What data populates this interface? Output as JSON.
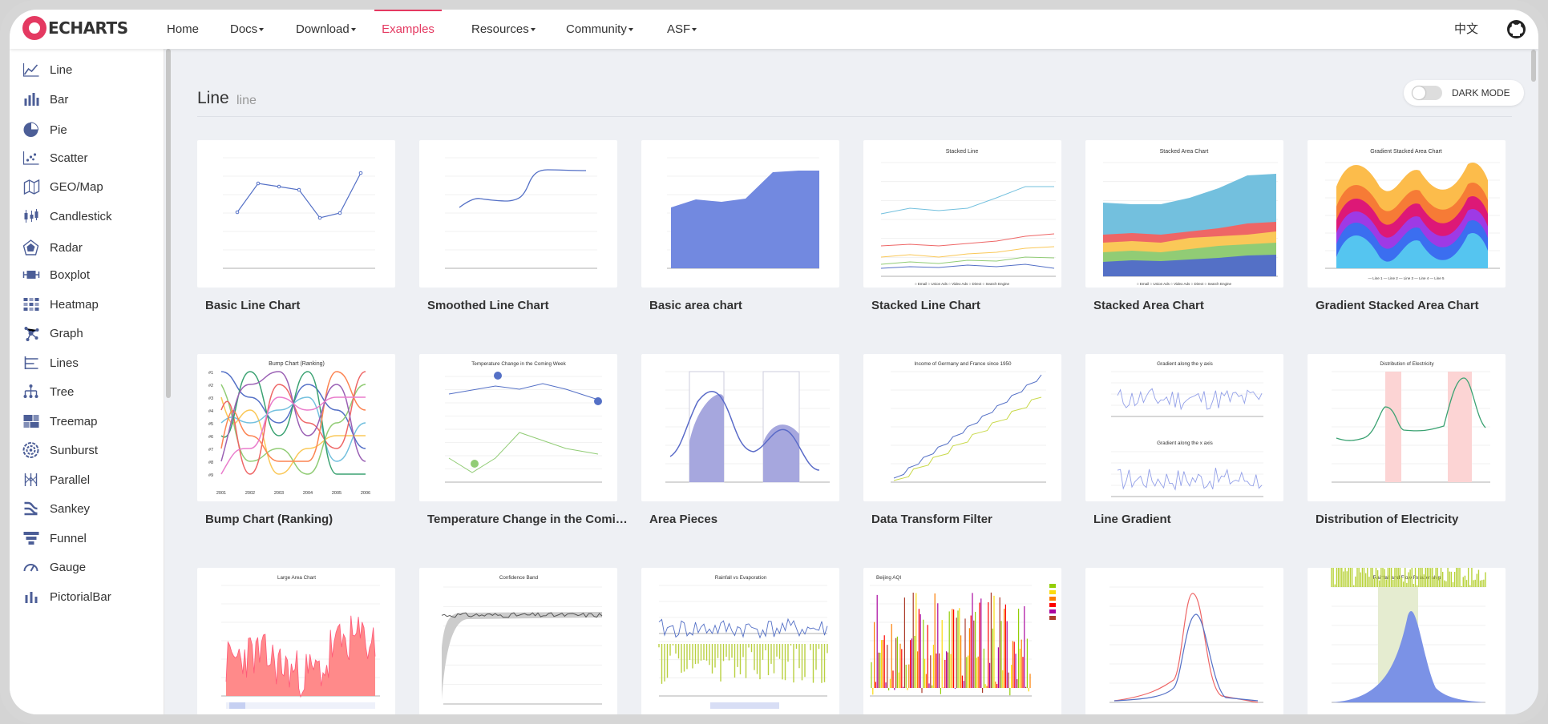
{
  "brand": {
    "logo_text": "ECHARTS",
    "accent": "#e43961"
  },
  "nav": {
    "items": [
      {
        "label": "Home",
        "dropdown": false
      },
      {
        "label": "Docs",
        "dropdown": true
      },
      {
        "label": "Download",
        "dropdown": true
      },
      {
        "label": "Examples",
        "dropdown": false,
        "active": true
      },
      {
        "label": "Resources",
        "dropdown": true
      },
      {
        "label": "Community",
        "dropdown": true
      },
      {
        "label": "ASF",
        "dropdown": true
      }
    ],
    "lang": "中文",
    "github_icon": "github-icon"
  },
  "sidebar": {
    "items": [
      {
        "label": "Line",
        "icon": "line-chart-icon"
      },
      {
        "label": "Bar",
        "icon": "bar-chart-icon"
      },
      {
        "label": "Pie",
        "icon": "pie-chart-icon"
      },
      {
        "label": "Scatter",
        "icon": "scatter-chart-icon"
      },
      {
        "label": "GEO/Map",
        "icon": "map-icon"
      },
      {
        "label": "Candlestick",
        "icon": "candlestick-icon"
      },
      {
        "label": "Radar",
        "icon": "radar-icon"
      },
      {
        "label": "Boxplot",
        "icon": "boxplot-icon"
      },
      {
        "label": "Heatmap",
        "icon": "heatmap-icon"
      },
      {
        "label": "Graph",
        "icon": "graph-icon"
      },
      {
        "label": "Lines",
        "icon": "lines-icon"
      },
      {
        "label": "Tree",
        "icon": "tree-icon"
      },
      {
        "label": "Treemap",
        "icon": "treemap-icon"
      },
      {
        "label": "Sunburst",
        "icon": "sunburst-icon"
      },
      {
        "label": "Parallel",
        "icon": "parallel-icon"
      },
      {
        "label": "Sankey",
        "icon": "sankey-icon"
      },
      {
        "label": "Funnel",
        "icon": "funnel-icon"
      },
      {
        "label": "Gauge",
        "icon": "gauge-icon"
      },
      {
        "label": "PictorialBar",
        "icon": "pictorialbar-icon"
      }
    ]
  },
  "main": {
    "title": "Line",
    "subtitle": "line",
    "dark_mode_label": "DARK MODE",
    "examples": [
      {
        "title": "Basic Line Chart",
        "thumb": "basic-line"
      },
      {
        "title": "Smoothed Line Chart",
        "thumb": "smooth-line"
      },
      {
        "title": "Basic area chart",
        "thumb": "basic-area"
      },
      {
        "title": "Stacked Line Chart",
        "thumb": "stacked-line"
      },
      {
        "title": "Stacked Area Chart",
        "thumb": "stacked-area"
      },
      {
        "title": "Gradient Stacked Area Chart",
        "thumb": "gradient-area"
      },
      {
        "title": "Bump Chart (Ranking)",
        "thumb": "bump"
      },
      {
        "title": "Temperature Change in the Coming Week",
        "thumb": "temperature"
      },
      {
        "title": "Area Pieces",
        "thumb": "area-pieces"
      },
      {
        "title": "Data Transform Filter",
        "thumb": "transform-filter"
      },
      {
        "title": "Line Gradient",
        "thumb": "line-gradient"
      },
      {
        "title": "Distribution of Electricity",
        "thumb": "electricity"
      },
      {
        "title": "",
        "thumb": "large-area"
      },
      {
        "title": "",
        "thumb": "confidence-band"
      },
      {
        "title": "",
        "thumb": "rainfall-evaporation"
      },
      {
        "title": "",
        "thumb": "beijing-aqi"
      },
      {
        "title": "",
        "thumb": "multiple-x"
      },
      {
        "title": "",
        "thumb": "rainfall-flow"
      }
    ],
    "thumb_text": {
      "stacked_line": "Stacked Line",
      "stacked_area": "Stacked Area Chart",
      "gradient_area": "Gradient Stacked Area Chart",
      "bump": "Bump Chart (Ranking)",
      "temperature": "Temperature Change in the Coming Week",
      "transform": "Income of Germany and France since 1950",
      "gradient_y": "Gradient along the y axis",
      "gradient_x": "Gradient along the x axis",
      "electricity": "Distribution of Electricity",
      "large_area": "Large Area Chart",
      "confidence": "Confidence Band",
      "rainfall": "Rainfall vs Evaporation",
      "aqi": "Beijing AQI",
      "rainfall_flow": "Rainfall and Flow Relationship"
    }
  }
}
